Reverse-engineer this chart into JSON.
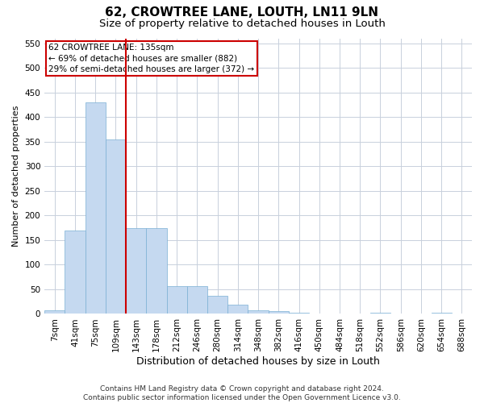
{
  "title": "62, CROWTREE LANE, LOUTH, LN11 9LN",
  "subtitle": "Size of property relative to detached houses in Louth",
  "xlabel": "Distribution of detached houses by size in Louth",
  "ylabel": "Number of detached properties",
  "footnote": "Contains HM Land Registry data © Crown copyright and database right 2024.\nContains public sector information licensed under the Open Government Licence v3.0.",
  "bar_labels": [
    "7sqm",
    "41sqm",
    "75sqm",
    "109sqm",
    "143sqm",
    "178sqm",
    "212sqm",
    "246sqm",
    "280sqm",
    "314sqm",
    "348sqm",
    "382sqm",
    "416sqm",
    "450sqm",
    "484sqm",
    "518sqm",
    "552sqm",
    "586sqm",
    "620sqm",
    "654sqm",
    "688sqm"
  ],
  "bar_values": [
    7,
    170,
    430,
    355,
    175,
    175,
    57,
    57,
    37,
    18,
    8,
    5,
    3,
    0,
    0,
    0,
    2,
    0,
    0,
    2,
    0
  ],
  "bar_color": "#c5d9f0",
  "bar_edge_color": "#7aafd4",
  "reference_line_x": 3.5,
  "reference_line_label": "62 CROWTREE LANE: 135sqm",
  "annotation_line1": "← 69% of detached houses are smaller (882)",
  "annotation_line2": "29% of semi-detached houses are larger (372) →",
  "annotation_box_color": "#cc0000",
  "ylim": [
    0,
    560
  ],
  "yticks": [
    0,
    50,
    100,
    150,
    200,
    250,
    300,
    350,
    400,
    450,
    500,
    550
  ],
  "background_color": "#ffffff",
  "grid_color": "#c8d0dc",
  "title_fontsize": 11,
  "subtitle_fontsize": 9.5,
  "xlabel_fontsize": 9,
  "ylabel_fontsize": 8,
  "tick_fontsize": 7.5,
  "footnote_fontsize": 6.5,
  "annot_fontsize": 7.5
}
